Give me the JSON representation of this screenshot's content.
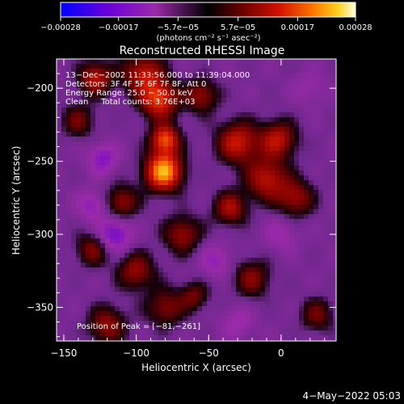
{
  "chart_data": {
    "type": "heatmap",
    "title": "Reconstructed RHESSI Image",
    "xlabel": "Heliocentric X (arcsec)",
    "ylabel": "Heliocentric Y (arcsec)",
    "xlim": [
      -155,
      38
    ],
    "ylim": [
      -373,
      -180
    ],
    "x_ticks": [
      -150,
      -100,
      -50,
      0
    ],
    "x_tick_labels": [
      "−150",
      "−100",
      "−50",
      "0"
    ],
    "y_ticks": [
      -200,
      -250,
      -300,
      -350
    ],
    "y_tick_labels": [
      "−200",
      "−250",
      "−300",
      "−350"
    ],
    "colorbar": {
      "range": [
        -0.00028,
        0.00028
      ],
      "ticks": [
        -0.00028,
        -0.00017,
        -5.7e-05,
        5.7e-05,
        0.00017,
        0.00028
      ],
      "tick_labels": [
        "−0.00028",
        "−0.00017",
        "−5.7e−05",
        "5.7e−05",
        "0.00017",
        "0.00028"
      ],
      "units": "(photons cm⁻² s⁻¹ asec⁻²)"
    },
    "annotations": [
      "13−Dec−2002 11:33:56.000 to 11:39:04.000",
      "Detectors: 3F 4F 5F 6F 7F 8F, Att 0",
      "Energy Range: 25.0 − 50.0 keV",
      "Clean     Total counts: 3.76E+03",
      "Position of Peak = [−81,−261]"
    ],
    "peak": {
      "x": -81,
      "y": -261
    },
    "sources": [
      {
        "x": -81,
        "y": -257,
        "level": 1.0,
        "sigma": 9
      },
      {
        "x": -80,
        "y": -235,
        "level": 0.75,
        "sigma": 7
      },
      {
        "x": -84,
        "y": -208,
        "level": 0.7,
        "sigma": 9
      },
      {
        "x": -95,
        "y": -190,
        "level": 0.55,
        "sigma": 10
      },
      {
        "x": -128,
        "y": -193,
        "level": 0.55,
        "sigma": 8
      },
      {
        "x": -140,
        "y": -222,
        "level": 0.35,
        "sigma": 8
      },
      {
        "x": -30,
        "y": -237,
        "level": 0.6,
        "sigma": 10
      },
      {
        "x": -2,
        "y": -235,
        "level": 0.55,
        "sigma": 9
      },
      {
        "x": -10,
        "y": -262,
        "level": 0.55,
        "sigma": 10
      },
      {
        "x": 10,
        "y": -275,
        "level": 0.45,
        "sigma": 9
      },
      {
        "x": -35,
        "y": -282,
        "level": 0.5,
        "sigma": 8
      },
      {
        "x": -55,
        "y": -205,
        "level": 0.45,
        "sigma": 8
      },
      {
        "x": -68,
        "y": -300,
        "level": 0.45,
        "sigma": 9
      },
      {
        "x": -110,
        "y": -278,
        "level": 0.45,
        "sigma": 8
      },
      {
        "x": -130,
        "y": -310,
        "level": 0.4,
        "sigma": 8
      },
      {
        "x": -100,
        "y": -325,
        "level": 0.45,
        "sigma": 9
      },
      {
        "x": -80,
        "y": -350,
        "level": 0.4,
        "sigma": 9
      },
      {
        "x": -120,
        "y": -362,
        "level": 0.45,
        "sigma": 9
      },
      {
        "x": -20,
        "y": -330,
        "level": 0.4,
        "sigma": 9
      },
      {
        "x": 25,
        "y": -355,
        "level": 0.35,
        "sigma": 8
      },
      {
        "x": -60,
        "y": -342,
        "level": 0.35,
        "sigma": 7
      },
      {
        "x": -123,
        "y": -248,
        "level": -0.35,
        "sigma": 7
      },
      {
        "x": -115,
        "y": -300,
        "level": -0.45,
        "sigma": 8
      },
      {
        "x": -130,
        "y": -280,
        "level": -0.3,
        "sigma": 7
      },
      {
        "x": -45,
        "y": -318,
        "level": -0.25,
        "sigma": 8
      },
      {
        "x": 0,
        "y": -300,
        "level": -0.2,
        "sigma": 8
      },
      {
        "x": -30,
        "y": -360,
        "level": -0.2,
        "sigma": 8
      },
      {
        "x": 20,
        "y": -200,
        "level": -0.15,
        "sigma": 8
      }
    ]
  },
  "footer": {
    "date": "4−May−2022 05:03"
  }
}
